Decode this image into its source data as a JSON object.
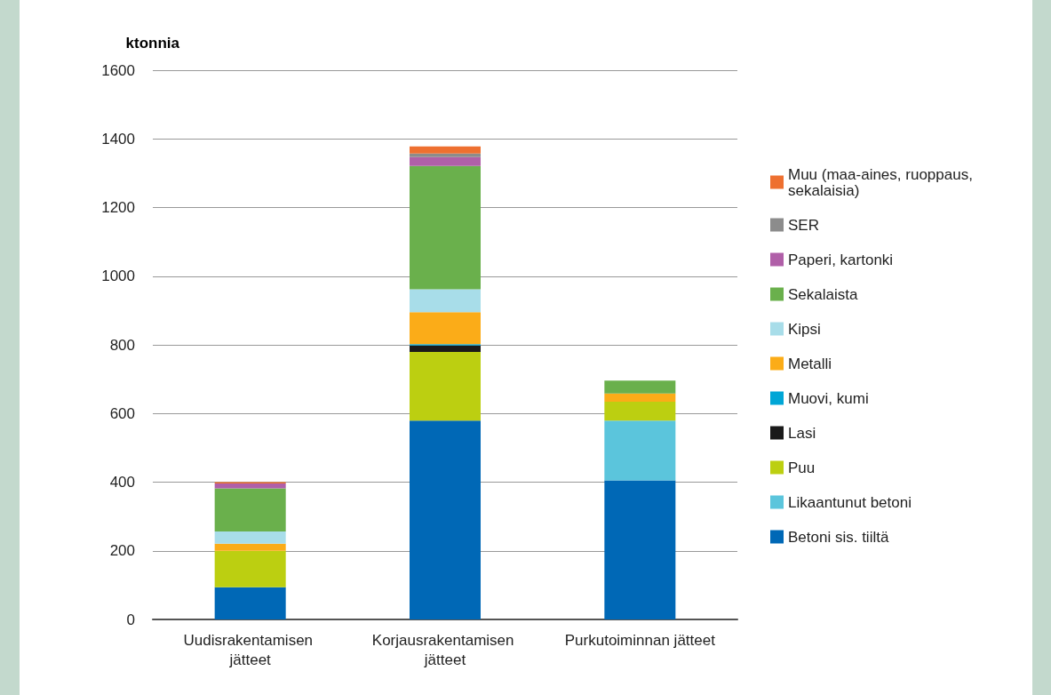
{
  "chart_data": {
    "type": "bar",
    "stacked": true,
    "ylabel": "ktonnia",
    "categories": [
      "Uudisrakentamisen jätteet",
      "Korjausrakentamisen jätteet",
      "Purkutoiminnan jätteet"
    ],
    "ylim": [
      0,
      1600
    ],
    "yticks": [
      0,
      200,
      400,
      600,
      800,
      1000,
      1200,
      1400,
      1600
    ],
    "grid": "y",
    "legend": "right",
    "series": [
      {
        "name": "Betoni sis. tiiltä",
        "color": "#0068b6",
        "values": [
          94,
          579,
          405
        ]
      },
      {
        "name": "Likaantunut betoni",
        "color": "#5bc5dc",
        "values": [
          0,
          0,
          174
        ]
      },
      {
        "name": "Puu",
        "color": "#bccf11",
        "values": [
          106,
          200,
          55
        ]
      },
      {
        "name": "Lasi",
        "color": "#1a1a1a",
        "values": [
          0,
          19,
          0
        ]
      },
      {
        "name": "Muovi, kumi",
        "color": "#00a6d6",
        "values": [
          0,
          4,
          0
        ]
      },
      {
        "name": "Metalli",
        "color": "#fbac18",
        "values": [
          21,
          93,
          24
        ]
      },
      {
        "name": "Kipsi",
        "color": "#a8dde9",
        "values": [
          35,
          67,
          0
        ]
      },
      {
        "name": "Sekalaista",
        "color": "#6ab04c",
        "values": [
          126,
          359,
          38
        ]
      },
      {
        "name": "Paperi, kartonki",
        "color": "#b05fa8",
        "values": [
          14,
          26,
          0
        ]
      },
      {
        "name": "SER",
        "color": "#8c8c8c",
        "values": [
          0,
          10,
          0
        ]
      },
      {
        "name": "Muu (maa-aines, ruoppaus, sekalaisia)",
        "color": "#ee7030",
        "values": [
          4,
          21,
          0
        ]
      }
    ]
  }
}
